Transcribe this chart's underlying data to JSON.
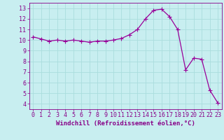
{
  "x": [
    0,
    1,
    2,
    3,
    4,
    5,
    6,
    7,
    8,
    9,
    10,
    11,
    12,
    13,
    14,
    15,
    16,
    17,
    18,
    19,
    20,
    21,
    22,
    23
  ],
  "y": [
    10.3,
    10.1,
    9.9,
    10.0,
    9.9,
    10.0,
    9.9,
    9.8,
    9.9,
    9.9,
    10.0,
    10.15,
    10.5,
    11.0,
    12.0,
    12.8,
    12.9,
    12.2,
    11.0,
    7.2,
    8.3,
    8.2,
    5.3,
    4.1
  ],
  "line_color": "#990099",
  "marker": "+",
  "marker_size": 4,
  "marker_linewidth": 0.8,
  "line_width": 0.9,
  "xlabel": "Windchill (Refroidissement éolien,°C)",
  "bg_color": "#c8eef0",
  "grid_color": "#aadddd",
  "xlim": [
    -0.5,
    23.5
  ],
  "ylim": [
    3.5,
    13.5
  ],
  "yticks": [
    4,
    5,
    6,
    7,
    8,
    9,
    10,
    11,
    12,
    13
  ],
  "xticks": [
    0,
    1,
    2,
    3,
    4,
    5,
    6,
    7,
    8,
    9,
    10,
    11,
    12,
    13,
    14,
    15,
    16,
    17,
    18,
    19,
    20,
    21,
    22,
    23
  ],
  "tick_color": "#880088",
  "label_color": "#880088",
  "xlabel_fontsize": 6.5,
  "tick_fontsize": 6
}
